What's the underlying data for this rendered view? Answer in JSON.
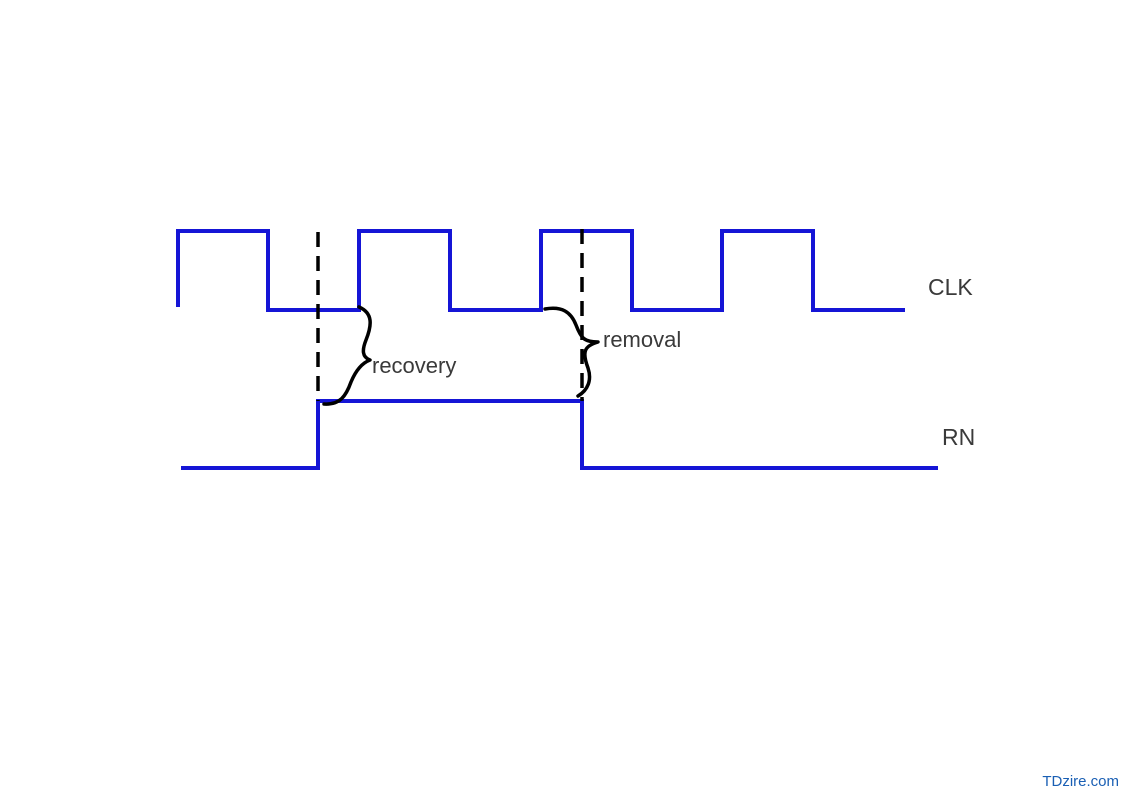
{
  "colors": {
    "waveform": "#1515d6",
    "annotation": "#000000",
    "label_text": "#3a3a3a",
    "watermark": "#1a5fb4"
  },
  "signals": {
    "clk": {
      "label": "CLK"
    },
    "rn": {
      "label": "RN"
    }
  },
  "annotations": {
    "recovery": "recovery",
    "removal": "removal"
  },
  "watermark": "TDzire.com"
}
